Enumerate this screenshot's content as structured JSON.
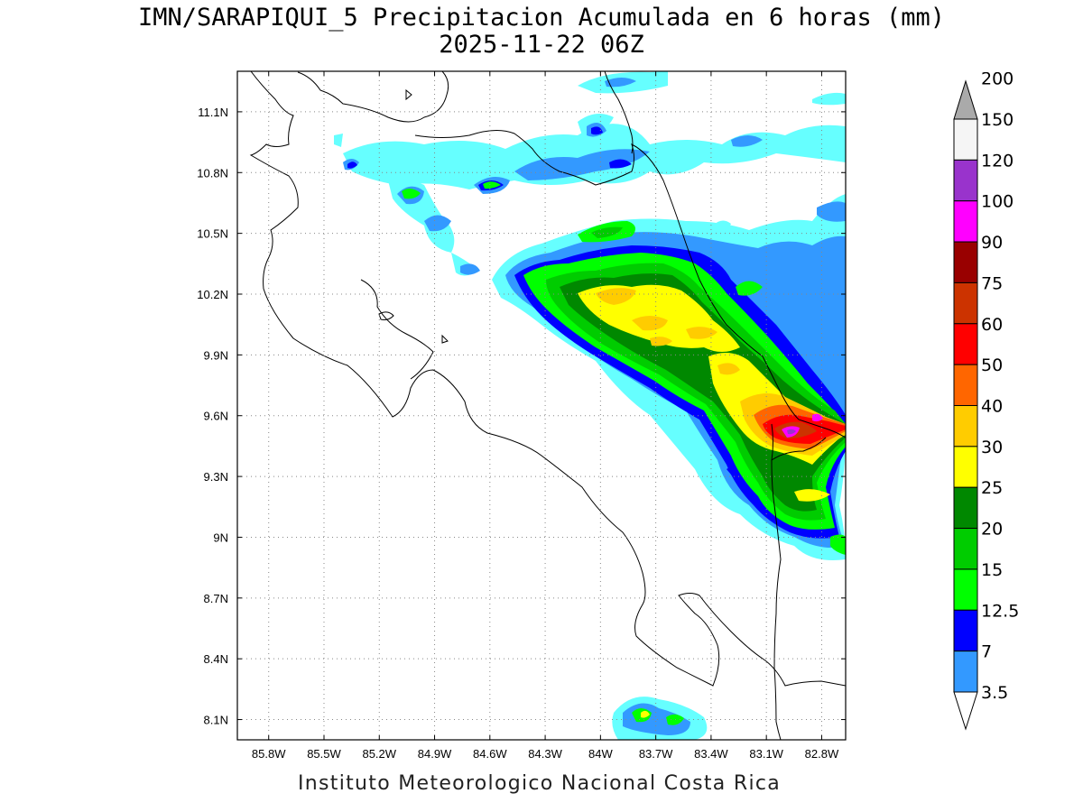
{
  "title_line1": "IMN/SARAPIQUI_5 Precipitacion Acumulada en 6 horas (mm)",
  "title_line2": "2025-11-22 06Z",
  "footer": "Instituto Meteorologico Nacional Costa Rica",
  "lon_ticks": [
    {
      "value": -85.8,
      "label": "85.8W"
    },
    {
      "value": -85.5,
      "label": "85.5W"
    },
    {
      "value": -85.2,
      "label": "85.2W"
    },
    {
      "value": -84.9,
      "label": "84.9W"
    },
    {
      "value": -84.6,
      "label": "84.6W"
    },
    {
      "value": -84.3,
      "label": "84.3W"
    },
    {
      "value": -84.0,
      "label": "84W"
    },
    {
      "value": -83.7,
      "label": "83.7W"
    },
    {
      "value": -83.4,
      "label": "83.4W"
    },
    {
      "value": -83.1,
      "label": "83.1W"
    },
    {
      "value": -82.8,
      "label": "82.8W"
    }
  ],
  "lat_ticks": [
    {
      "value": 11.1,
      "label": "11.1N"
    },
    {
      "value": 10.8,
      "label": "10.8N"
    },
    {
      "value": 10.5,
      "label": "10.5N"
    },
    {
      "value": 10.2,
      "label": "10.2N"
    },
    {
      "value": 9.9,
      "label": "9.9N"
    },
    {
      "value": 9.6,
      "label": "9.6N"
    },
    {
      "value": 9.3,
      "label": "9.3N"
    },
    {
      "value": 9.0,
      "label": "9N"
    },
    {
      "value": 8.7,
      "label": "8.7N"
    },
    {
      "value": 8.4,
      "label": "8.4N"
    },
    {
      "value": 8.1,
      "label": "8.1N"
    }
  ],
  "lon_range": [
    -85.97,
    -82.67
  ],
  "lat_range": [
    8.0,
    11.3
  ],
  "colorbar": {
    "colors": [
      "#66ffff",
      "#3399ff",
      "#0000ff",
      "#00ff00",
      "#00cc00",
      "#008800",
      "#ffff00",
      "#ffcc00",
      "#ff6600",
      "#ff0000",
      "#cc3300",
      "#990000",
      "#ff00ff",
      "#9933cc",
      "#f5f5f5",
      "#aaaaaa"
    ],
    "labels": [
      "3.5",
      "7",
      "12.5",
      "15",
      "20",
      "25",
      "30",
      "40",
      "50",
      "60",
      "75",
      "90",
      "100",
      "120",
      "150",
      "200"
    ]
  },
  "precip_cells": [
    {
      "lon": -84.15,
      "lat": 10.05,
      "rx": 0.55,
      "ry": 0.16,
      "rot": 28,
      "level": 2
    },
    {
      "lon": -83.85,
      "lat": 10.15,
      "rx": 0.35,
      "ry": 0.1,
      "rot": 20,
      "level": 4
    },
    {
      "lon": -83.7,
      "lat": 10.05,
      "rx": 0.35,
      "ry": 0.1,
      "rot": 25,
      "level": 6
    },
    {
      "lon": -83.3,
      "lat": 9.75,
      "rx": 0.35,
      "ry": 0.12,
      "rot": 35,
      "level": 4
    },
    {
      "lon": -83.05,
      "lat": 9.6,
      "rx": 0.25,
      "ry": 0.12,
      "rot": 30,
      "level": 6
    },
    {
      "lon": -82.85,
      "lat": 9.52,
      "rx": 0.15,
      "ry": 0.07,
      "rot": 20,
      "level": 9
    },
    {
      "lon": -82.8,
      "lat": 9.52,
      "rx": 0.05,
      "ry": 0.03,
      "rot": 0,
      "level": 12
    },
    {
      "lon": -82.75,
      "lat": 9.2,
      "rx": 0.12,
      "ry": 0.05,
      "rot": 0,
      "level": 4
    },
    {
      "lon": -83.65,
      "lat": 8.13,
      "rx": 0.05,
      "ry": 0.05,
      "rot": 0,
      "level": 4
    }
  ]
}
